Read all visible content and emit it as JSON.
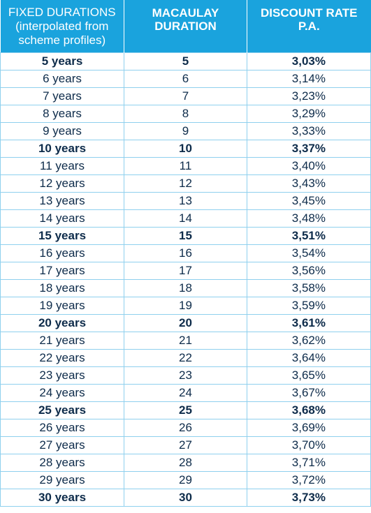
{
  "header": {
    "col1_lines": [
      "FIXED DURATIONS",
      "(interpolated from",
      "scheme profiles)"
    ],
    "col2_lines": [
      "MACAULAY",
      "DURATION"
    ],
    "col3_lines": [
      "DISCOUNT RATE",
      "P.A."
    ]
  },
  "rows": [
    {
      "label": "5 years",
      "duration": "5",
      "rate": "3,03%",
      "bold": true
    },
    {
      "label": "6 years",
      "duration": "6",
      "rate": "3,14%",
      "bold": false
    },
    {
      "label": "7 years",
      "duration": "7",
      "rate": "3,23%",
      "bold": false
    },
    {
      "label": "8 years",
      "duration": "8",
      "rate": "3,29%",
      "bold": false
    },
    {
      "label": "9 years",
      "duration": "9",
      "rate": "3,33%",
      "bold": false
    },
    {
      "label": "10 years",
      "duration": "10",
      "rate": "3,37%",
      "bold": true
    },
    {
      "label": "11 years",
      "duration": "11",
      "rate": "3,40%",
      "bold": false
    },
    {
      "label": "12 years",
      "duration": "12",
      "rate": "3,43%",
      "bold": false
    },
    {
      "label": "13 years",
      "duration": "13",
      "rate": "3,45%",
      "bold": false
    },
    {
      "label": "14 years",
      "duration": "14",
      "rate": "3,48%",
      "bold": false
    },
    {
      "label": "15 years",
      "duration": "15",
      "rate": "3,51%",
      "bold": true
    },
    {
      "label": "16 years",
      "duration": "16",
      "rate": "3,54%",
      "bold": false
    },
    {
      "label": "17 years",
      "duration": "17",
      "rate": "3,56%",
      "bold": false
    },
    {
      "label": "18 years",
      "duration": "18",
      "rate": "3,58%",
      "bold": false
    },
    {
      "label": "19 years",
      "duration": "19",
      "rate": "3,59%",
      "bold": false
    },
    {
      "label": "20 years",
      "duration": "20",
      "rate": "3,61%",
      "bold": true
    },
    {
      "label": "21 years",
      "duration": "21",
      "rate": "3,62%",
      "bold": false
    },
    {
      "label": "22 years",
      "duration": "22",
      "rate": "3,64%",
      "bold": false
    },
    {
      "label": "23 years",
      "duration": "23",
      "rate": "3,65%",
      "bold": false
    },
    {
      "label": "24 years",
      "duration": "24",
      "rate": "3,67%",
      "bold": false
    },
    {
      "label": "25 years",
      "duration": "25",
      "rate": "3,68%",
      "bold": true
    },
    {
      "label": "26 years",
      "duration": "26",
      "rate": "3,69%",
      "bold": false
    },
    {
      "label": "27 years",
      "duration": "27",
      "rate": "3,70%",
      "bold": false
    },
    {
      "label": "28 years",
      "duration": "28",
      "rate": "3,71%",
      "bold": false
    },
    {
      "label": "29 years",
      "duration": "29",
      "rate": "3,72%",
      "bold": false
    },
    {
      "label": "30 years",
      "duration": "30",
      "rate": "3,73%",
      "bold": true
    }
  ]
}
